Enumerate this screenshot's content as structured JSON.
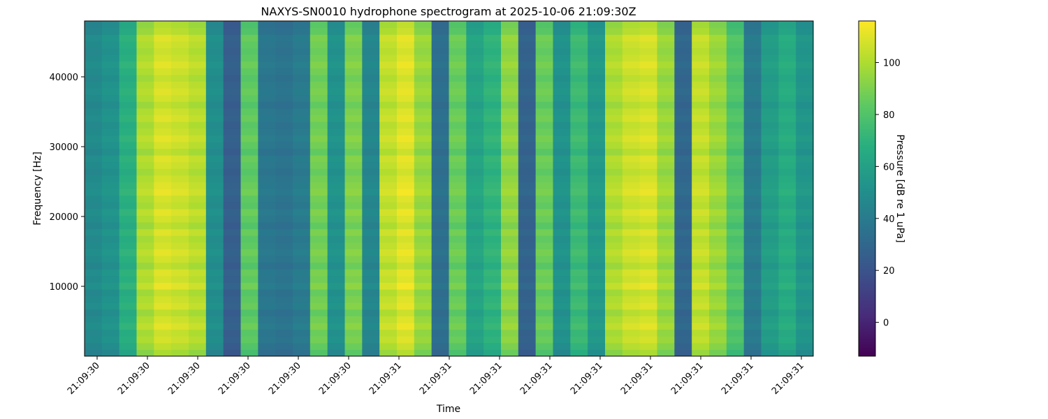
{
  "chart_data": {
    "type": "heatmap",
    "title": "NAXYS-SN0010 hydrophone spectrogram at 2025-10-06 21:09:30Z",
    "xlabel": "Time",
    "ylabel": "Frequency [Hz]",
    "x_ticks": [
      "21:09:30",
      "21:09:30",
      "21:09:30",
      "21:09:30",
      "21:09:30",
      "21:09:30",
      "21:09:31",
      "21:09:31",
      "21:09:31",
      "21:09:31",
      "21:09:31",
      "21:09:31",
      "21:09:31",
      "21:09:31",
      "21:09:31"
    ],
    "y_ticks": [
      10000,
      20000,
      30000,
      40000
    ],
    "ylim": [
      0,
      48000
    ],
    "colorbar": {
      "label": "Pressure [dB re 1 uPa]",
      "range": [
        -13,
        116
      ],
      "ticks": [
        0,
        20,
        40,
        60,
        80,
        100
      ],
      "colormap": "viridis"
    },
    "time_columns_db": [
      48,
      52,
      68,
      100,
      108,
      106,
      102,
      50,
      26,
      84,
      38,
      36,
      40,
      88,
      52,
      90,
      46,
      104,
      110,
      96,
      34,
      86,
      62,
      70,
      94,
      28,
      86,
      52,
      74,
      56,
      100,
      106,
      108,
      96,
      30,
      104,
      96,
      80,
      40,
      58,
      66,
      54
    ],
    "frequency_profile_db": [
      -8,
      -4,
      0,
      -2,
      3,
      0,
      -4,
      2,
      0,
      -3,
      4,
      0,
      2,
      -4,
      0,
      3,
      0,
      -2,
      2,
      -4,
      0,
      3,
      -2,
      0,
      4,
      2,
      0,
      -3,
      0,
      2,
      -4,
      0,
      3,
      0,
      -2,
      2,
      0,
      -4,
      0,
      2,
      0,
      -3,
      0,
      3,
      0,
      -2,
      0,
      2,
      -4,
      -6
    ]
  }
}
